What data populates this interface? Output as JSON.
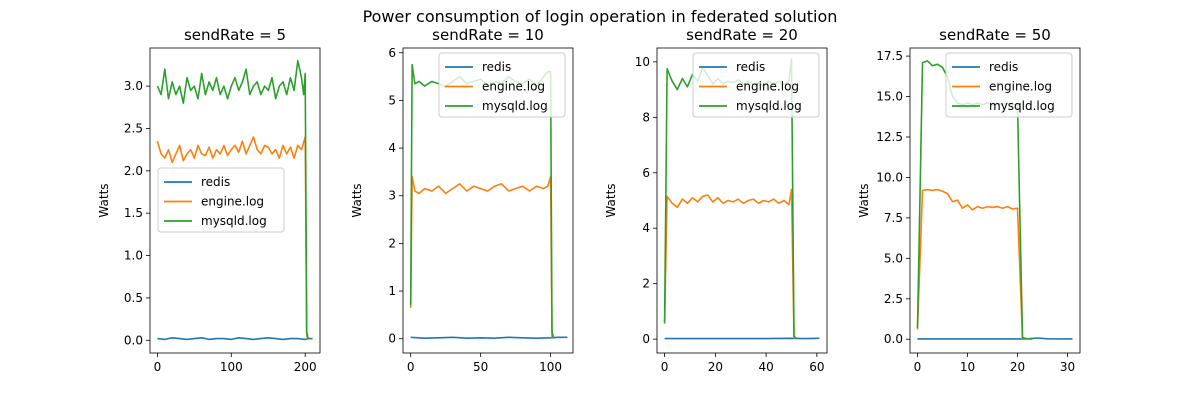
{
  "figure": {
    "title": "Power consumption of login operation in federated solution"
  },
  "chart_data": [
    {
      "type": "line",
      "title": "sendRate = 5",
      "xlabel": "",
      "ylabel": "Watts",
      "xlim": [
        -10,
        220
      ],
      "ylim": [
        -0.15,
        3.45
      ],
      "xticks": [
        0,
        100,
        200
      ],
      "yticks": [
        0.0,
        0.5,
        1.0,
        1.5,
        2.0,
        2.5,
        3.0
      ],
      "ytick_format": 1,
      "legend_position": "center-left",
      "legend": [
        "redis",
        "engine.log",
        "mysqld.log"
      ],
      "series": [
        {
          "name": "redis",
          "color": "#1f77b4",
          "x": [
            0,
            10,
            20,
            30,
            40,
            50,
            60,
            70,
            80,
            90,
            100,
            110,
            120,
            130,
            140,
            150,
            160,
            170,
            180,
            190,
            200,
            205,
            210
          ],
          "y": [
            0.02,
            0.01,
            0.03,
            0.02,
            0.01,
            0.02,
            0.03,
            0.01,
            0.02,
            0.02,
            0.01,
            0.03,
            0.02,
            0.01,
            0.02,
            0.03,
            0.02,
            0.01,
            0.02,
            0.02,
            0.01,
            0.02,
            0.02
          ]
        },
        {
          "name": "engine.log",
          "color": "#ff7f0e",
          "x": [
            0,
            5,
            10,
            15,
            20,
            25,
            30,
            35,
            40,
            45,
            50,
            55,
            60,
            65,
            70,
            75,
            80,
            85,
            90,
            95,
            100,
            105,
            110,
            115,
            120,
            125,
            130,
            135,
            140,
            145,
            150,
            155,
            160,
            165,
            170,
            175,
            180,
            185,
            190,
            195,
            200,
            202,
            204
          ],
          "y": [
            2.35,
            2.2,
            2.15,
            2.25,
            2.1,
            2.2,
            2.3,
            2.12,
            2.2,
            2.25,
            2.15,
            2.3,
            2.2,
            2.18,
            2.28,
            2.15,
            2.25,
            2.2,
            2.3,
            2.18,
            2.25,
            2.3,
            2.22,
            2.35,
            2.2,
            2.3,
            2.4,
            2.25,
            2.2,
            2.3,
            2.28,
            2.2,
            2.25,
            2.15,
            2.3,
            2.2,
            2.28,
            2.15,
            2.3,
            2.25,
            2.4,
            0.05,
            0.02
          ]
        },
        {
          "name": "mysqld.log",
          "color": "#2ca02c",
          "x": [
            0,
            5,
            10,
            15,
            20,
            25,
            30,
            35,
            40,
            45,
            50,
            55,
            60,
            65,
            70,
            75,
            80,
            85,
            90,
            95,
            100,
            105,
            110,
            115,
            120,
            125,
            130,
            135,
            140,
            145,
            150,
            155,
            160,
            165,
            170,
            175,
            180,
            185,
            190,
            195,
            198,
            200,
            202,
            204
          ],
          "y": [
            3.0,
            2.9,
            3.2,
            2.85,
            3.05,
            2.9,
            3.0,
            2.8,
            3.1,
            2.95,
            3.0,
            2.85,
            3.15,
            2.9,
            3.05,
            2.95,
            3.1,
            2.9,
            3.0,
            2.85,
            3.0,
            3.1,
            2.95,
            3.05,
            3.2,
            2.9,
            3.0,
            3.05,
            2.9,
            3.0,
            2.95,
            3.1,
            2.85,
            3.0,
            3.05,
            2.9,
            3.1,
            2.95,
            3.3,
            3.1,
            2.9,
            3.15,
            0.1,
            0.02
          ]
        }
      ]
    },
    {
      "type": "line",
      "title": "sendRate = 10",
      "xlabel": "",
      "ylabel": "Watts",
      "xlim": [
        -5.5,
        116
      ],
      "ylim": [
        -0.3,
        6.1
      ],
      "xticks": [
        0,
        50,
        100
      ],
      "yticks": [
        0,
        1,
        2,
        3,
        4,
        5,
        6
      ],
      "ytick_format": 0,
      "legend_position": "upper-right",
      "legend": [
        "redis",
        "engine.log",
        "mysqld.log"
      ],
      "series": [
        {
          "name": "redis",
          "color": "#1f77b4",
          "x": [
            0,
            10,
            20,
            30,
            40,
            50,
            60,
            70,
            80,
            90,
            100,
            105,
            112
          ],
          "y": [
            0.03,
            0.01,
            0.02,
            0.03,
            0.01,
            0.02,
            0.01,
            0.03,
            0.02,
            0.01,
            0.02,
            0.03,
            0.03
          ]
        },
        {
          "name": "engine.log",
          "color": "#ff7f0e",
          "x": [
            0,
            1,
            3,
            6,
            10,
            15,
            20,
            25,
            30,
            35,
            40,
            45,
            50,
            55,
            60,
            65,
            70,
            75,
            80,
            85,
            90,
            95,
            98,
            100,
            101
          ],
          "y": [
            0.65,
            3.4,
            3.1,
            3.05,
            3.15,
            3.1,
            3.2,
            3.05,
            3.15,
            3.25,
            3.1,
            3.2,
            3.15,
            3.1,
            3.2,
            3.25,
            3.1,
            3.15,
            3.2,
            3.1,
            3.2,
            3.15,
            3.2,
            3.4,
            0.02
          ]
        },
        {
          "name": "mysqld.log",
          "color": "#2ca02c",
          "x": [
            0,
            1,
            3,
            6,
            10,
            15,
            20,
            25,
            30,
            35,
            40,
            45,
            50,
            55,
            60,
            65,
            70,
            75,
            80,
            85,
            90,
            95,
            98,
            100,
            101,
            102
          ],
          "y": [
            0.7,
            5.75,
            5.35,
            5.4,
            5.3,
            5.4,
            5.35,
            5.3,
            5.4,
            5.5,
            5.35,
            5.4,
            5.45,
            5.3,
            5.4,
            5.35,
            5.5,
            5.4,
            5.35,
            5.45,
            5.3,
            5.5,
            5.6,
            5.6,
            0.15,
            0.03
          ]
        }
      ]
    },
    {
      "type": "line",
      "title": "sendRate = 20",
      "xlabel": "",
      "ylabel": "Watts",
      "xlim": [
        -3,
        64
      ],
      "ylim": [
        -0.5,
        10.5
      ],
      "xticks": [
        0,
        20,
        40,
        60
      ],
      "yticks": [
        0,
        2,
        4,
        6,
        8,
        10
      ],
      "ytick_format": 0,
      "legend_position": "upper-right",
      "legend": [
        "redis",
        "engine.log",
        "mysqld.log"
      ],
      "series": [
        {
          "name": "redis",
          "color": "#1f77b4",
          "x": [
            0,
            10,
            20,
            30,
            40,
            50,
            55,
            61
          ],
          "y": [
            0.02,
            0.02,
            0.02,
            0.02,
            0.02,
            0.03,
            0.02,
            0.03
          ]
        },
        {
          "name": "engine.log",
          "color": "#ff7f0e",
          "x": [
            0,
            1,
            3,
            5,
            7,
            9,
            11,
            13,
            15,
            17,
            19,
            21,
            23,
            25,
            27,
            29,
            31,
            33,
            35,
            37,
            39,
            41,
            43,
            45,
            47,
            49,
            50,
            51
          ],
          "y": [
            0.55,
            5.15,
            4.9,
            4.75,
            5.05,
            4.9,
            5.1,
            4.95,
            5.15,
            5.2,
            4.95,
            5.1,
            4.9,
            5.0,
            4.95,
            5.05,
            4.9,
            5.0,
            5.05,
            4.9,
            5.0,
            4.95,
            5.05,
            4.9,
            5.0,
            4.85,
            5.4,
            0.02
          ]
        },
        {
          "name": "mysqld.log",
          "color": "#2ca02c",
          "x": [
            0,
            1,
            3,
            5,
            7,
            9,
            11,
            13,
            15,
            17,
            19,
            21,
            23,
            25,
            27,
            29,
            31,
            33,
            35,
            37,
            39,
            41,
            43,
            45,
            47,
            49,
            50,
            51,
            52
          ],
          "y": [
            0.6,
            9.75,
            9.3,
            9.0,
            9.4,
            9.1,
            9.55,
            9.3,
            9.8,
            9.5,
            9.2,
            9.4,
            9.2,
            9.3,
            9.25,
            9.35,
            9.2,
            9.3,
            9.2,
            9.25,
            9.15,
            9.3,
            9.2,
            9.3,
            9.2,
            9.3,
            10.1,
            0.1,
            0.02
          ]
        }
      ]
    },
    {
      "type": "line",
      "title": "sendRate = 50",
      "xlabel": "",
      "ylabel": "Watts",
      "xlim": [
        -1.5,
        32.5
      ],
      "ylim": [
        -0.85,
        18.0
      ],
      "xticks": [
        0,
        10,
        20,
        30
      ],
      "yticks": [
        0.0,
        2.5,
        5.0,
        7.5,
        10.0,
        12.5,
        15.0,
        17.5
      ],
      "ytick_format": 1,
      "legend_position": "upper-right",
      "legend": [
        "redis",
        "engine.log",
        "mysqld.log"
      ],
      "series": [
        {
          "name": "redis",
          "color": "#1f77b4",
          "x": [
            0,
            5,
            10,
            15,
            20,
            22,
            24,
            26,
            31
          ],
          "y": [
            0.02,
            0.02,
            0.02,
            0.02,
            0.02,
            0.03,
            0.08,
            0.03,
            0.02
          ]
        },
        {
          "name": "engine.log",
          "color": "#ff7f0e",
          "x": [
            0,
            1,
            2,
            3,
            4,
            5,
            6,
            7,
            8,
            9,
            10,
            11,
            12,
            13,
            14,
            15,
            16,
            17,
            18,
            19,
            20,
            21
          ],
          "y": [
            0.6,
            9.2,
            9.25,
            9.2,
            9.25,
            9.15,
            9.0,
            8.5,
            8.6,
            8.1,
            8.3,
            8.0,
            8.2,
            8.1,
            8.2,
            8.15,
            8.2,
            8.1,
            8.2,
            8.05,
            8.1,
            0.02
          ]
        },
        {
          "name": "mysqld.log",
          "color": "#2ca02c",
          "x": [
            0,
            1,
            2,
            3,
            4,
            5,
            6,
            7,
            8,
            9,
            10,
            11,
            12,
            13,
            14,
            15,
            16,
            17,
            18,
            19,
            20,
            21,
            22,
            23
          ],
          "y": [
            0.7,
            17.1,
            17.2,
            16.9,
            17.0,
            16.8,
            16.2,
            15.0,
            14.6,
            14.5,
            14.6,
            14.5,
            14.6,
            14.5,
            14.6,
            14.5,
            14.55,
            14.5,
            14.6,
            14.5,
            14.5,
            0.1,
            0.02,
            0.02
          ]
        }
      ]
    }
  ]
}
